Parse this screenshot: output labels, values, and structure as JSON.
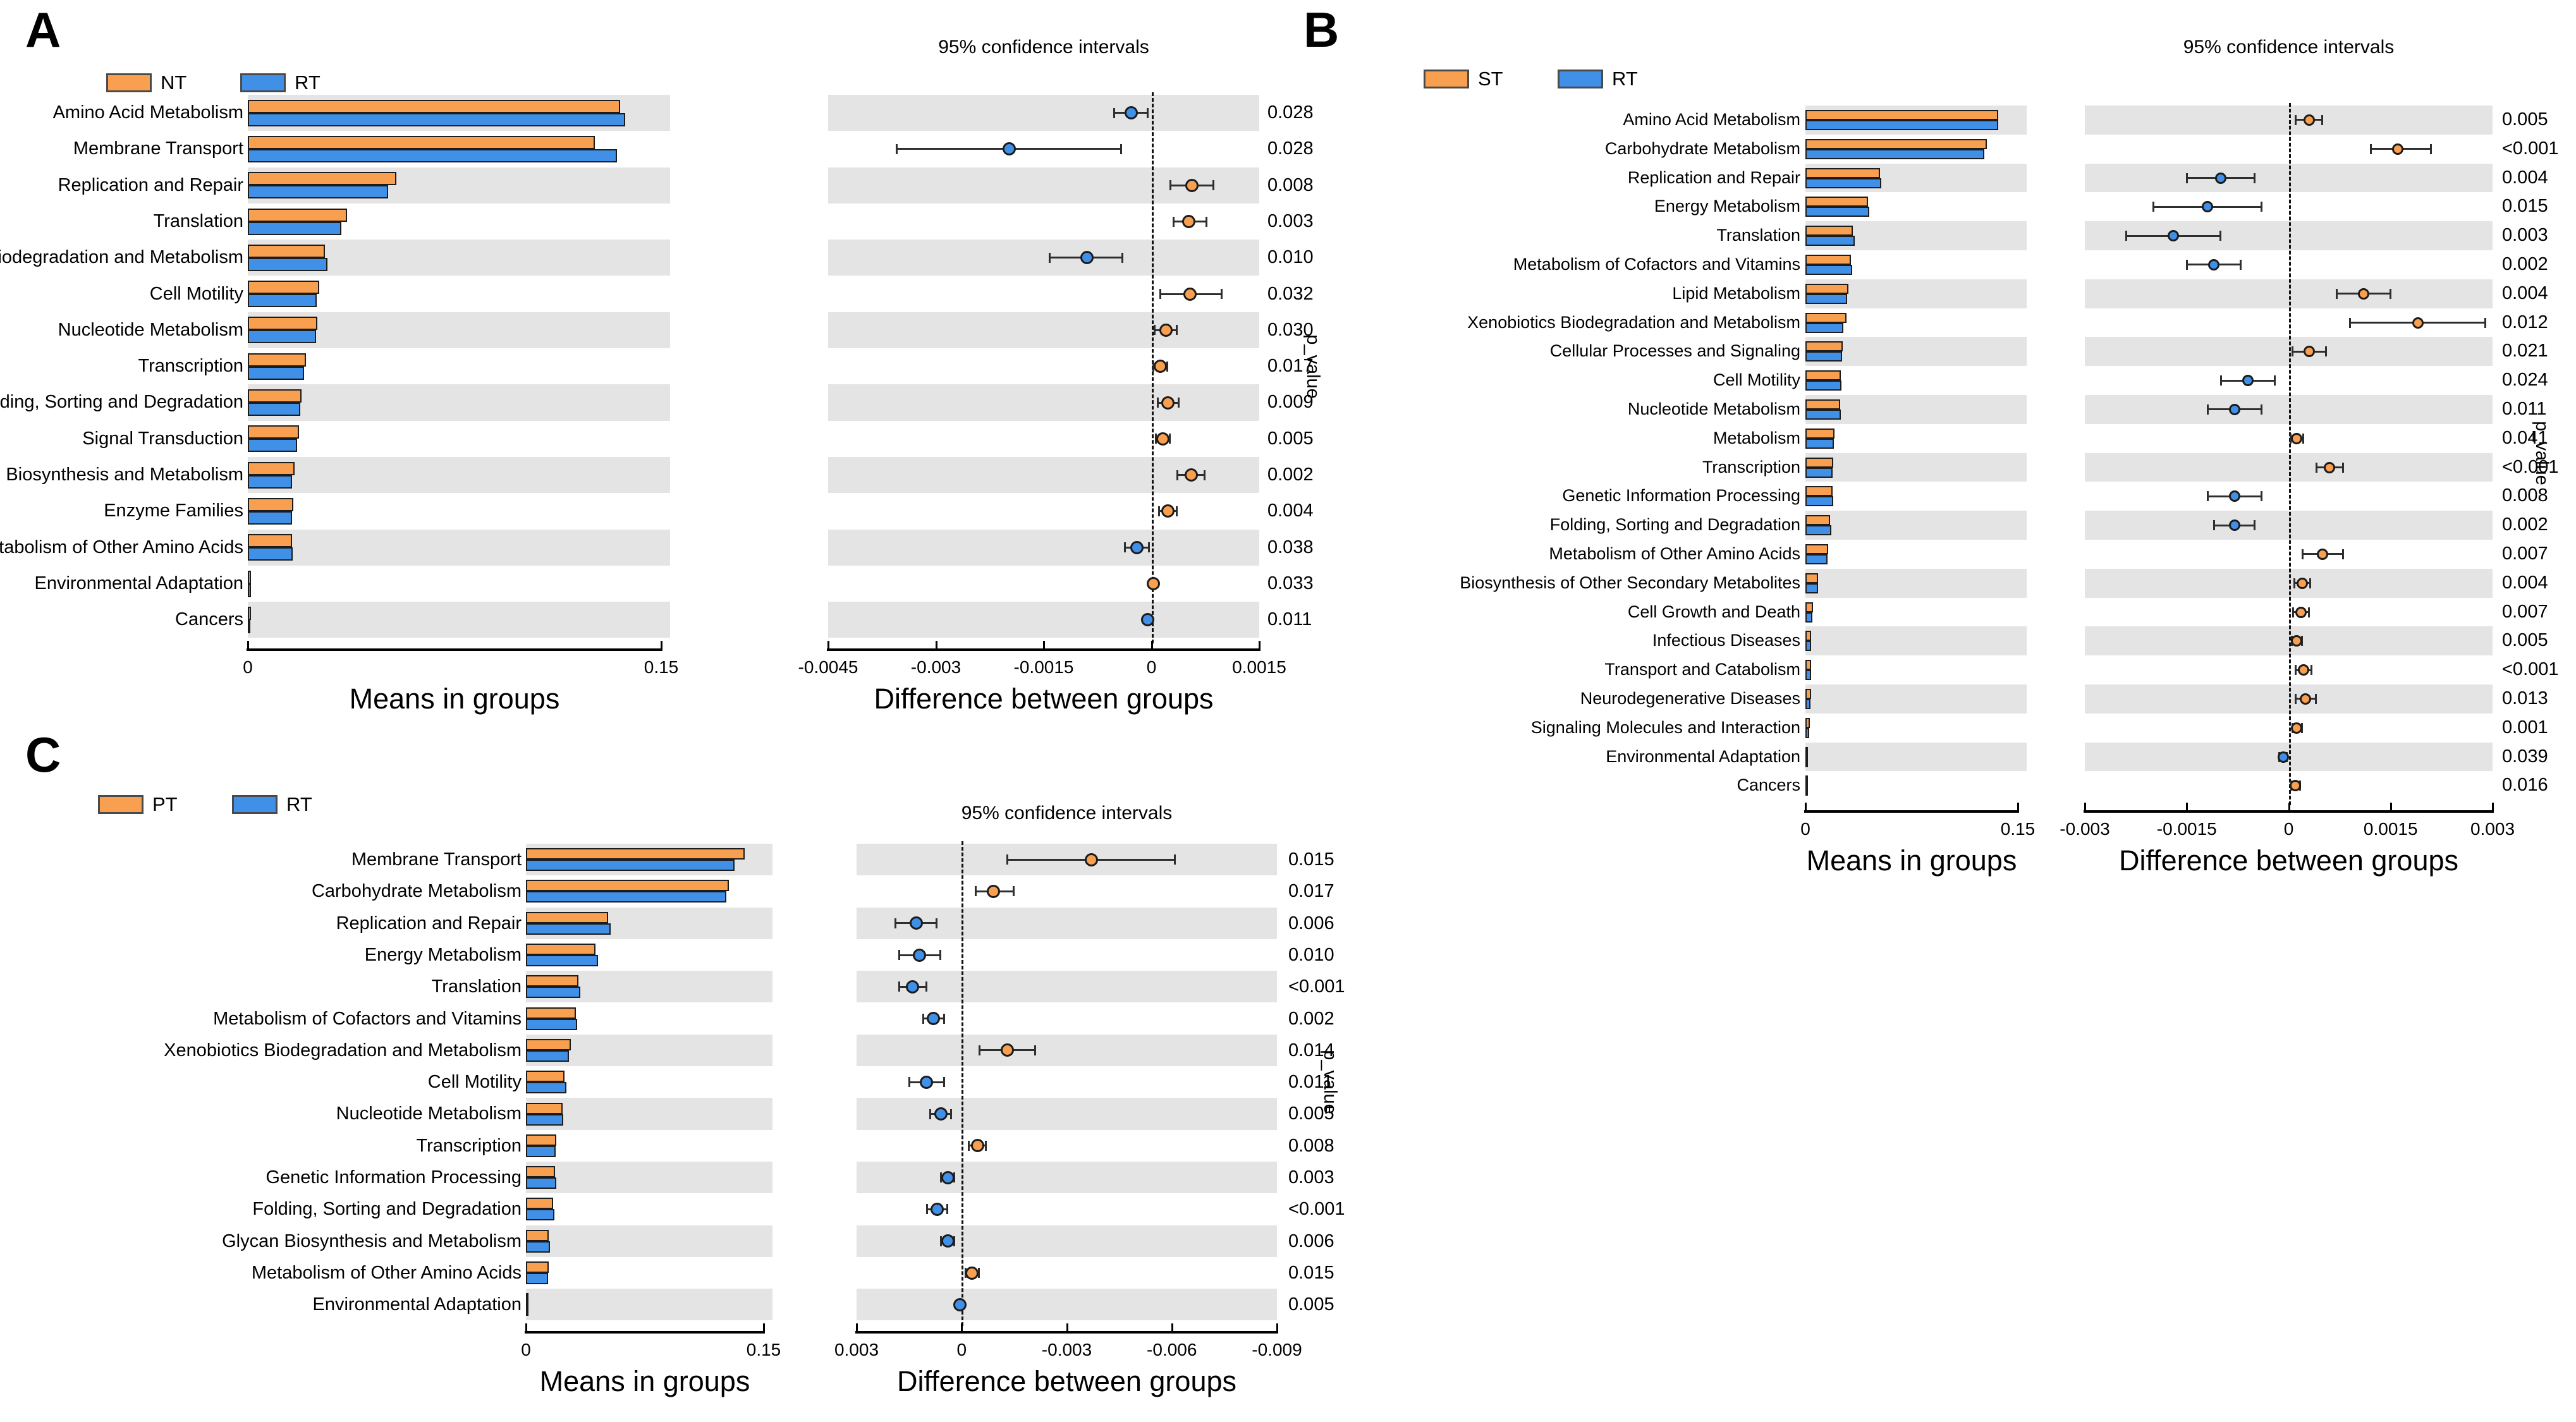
{
  "page": {
    "background": "#FFFFFF"
  },
  "styles": {
    "stripe_color": "#E4E4E4",
    "bar_border_color": "#1C1C1C",
    "axis_color": "#000000",
    "orange": "#F9A050",
    "blue": "#4190E8"
  },
  "chart_data": [
    {
      "type": "bar",
      "subtype": "extended-error-bar",
      "panel_label": "A",
      "groups": [
        "NT",
        "RT"
      ],
      "group_colors": {
        "NT": "#F9A050",
        "RT": "#4190E8"
      },
      "ci_title": "95% confidence intervals",
      "means_xlabel": "Means in groups",
      "diff_xlabel": "Difference between groups",
      "p_axis_label": "p_value",
      "means_xlim": [
        0,
        0.15
      ],
      "means_tick_labels": [
        "0",
        "0.15"
      ],
      "diff_axis_left_to_right": [
        -0.0045,
        0.0015
      ],
      "diff_ticks": [
        {
          "v": -0.0045,
          "label": "-0.0045"
        },
        {
          "v": -0.003,
          "label": "-0.003"
        },
        {
          "v": -0.0015,
          "label": "-0.0015"
        },
        {
          "v": 0,
          "label": "0"
        },
        {
          "v": 0.0015,
          "label": "0.0015"
        }
      ],
      "rows": [
        {
          "category": "Amino Acid Metabolism",
          "means": [
            0.135,
            0.137
          ],
          "diff": -0.00028,
          "ci": [
            -0.00052,
            -5e-05
          ],
          "dot": "RT",
          "p_value": "0.028"
        },
        {
          "category": "Membrane Transport",
          "means": [
            0.126,
            0.134
          ],
          "diff": -0.00198,
          "ci": [
            -0.00355,
            -0.00042
          ],
          "dot": "RT",
          "p_value": "0.028"
        },
        {
          "category": "Replication and Repair",
          "means": [
            0.054,
            0.051
          ],
          "diff": 0.00056,
          "ci": [
            0.00026,
            0.00087
          ],
          "dot": "NT",
          "p_value": "0.008"
        },
        {
          "category": "Translation",
          "means": [
            0.036,
            0.034
          ],
          "diff": 0.00052,
          "ci": [
            0.0003,
            0.00077
          ],
          "dot": "NT",
          "p_value": "0.003"
        },
        {
          "category": "Xenobiotics Biodegradation and Metabolism",
          "means": [
            0.028,
            0.029
          ],
          "diff": -0.0009,
          "ci": [
            -0.00142,
            -0.0004
          ],
          "dot": "RT",
          "p_value": "0.010"
        },
        {
          "category": "Cell Motility",
          "means": [
            0.026,
            0.025
          ],
          "diff": 0.00054,
          "ci": [
            0.00012,
            0.00098
          ],
          "dot": "NT",
          "p_value": "0.032"
        },
        {
          "category": "Nucleotide Metabolism",
          "means": [
            0.0252,
            0.0248
          ],
          "diff": 0.0002,
          "ci": [
            4e-05,
            0.00036
          ],
          "dot": "NT",
          "p_value": "0.030"
        },
        {
          "category": "Transcription",
          "means": [
            0.021,
            0.0205
          ],
          "diff": 0.00012,
          "ci": [
            2e-05,
            0.00022
          ],
          "dot": "NT",
          "p_value": "0.017"
        },
        {
          "category": "Folding, Sorting and Degradation",
          "means": [
            0.0195,
            0.019
          ],
          "diff": 0.00023,
          "ci": [
            8e-05,
            0.00038
          ],
          "dot": "NT",
          "p_value": "0.009"
        },
        {
          "category": "Signal Transduction",
          "means": [
            0.0185,
            0.018
          ],
          "diff": 0.00016,
          "ci": [
            6e-05,
            0.00026
          ],
          "dot": "NT",
          "p_value": "0.005"
        },
        {
          "category": "Glycan Biosynthesis and Metabolism",
          "means": [
            0.017,
            0.016
          ],
          "diff": 0.00055,
          "ci": [
            0.00036,
            0.00074
          ],
          "dot": "NT",
          "p_value": "0.002"
        },
        {
          "category": "Enzyme Families",
          "means": [
            0.0165,
            0.016
          ],
          "diff": 0.00023,
          "ci": [
            0.0001,
            0.00036
          ],
          "dot": "NT",
          "p_value": "0.004"
        },
        {
          "category": "Metabolism of Other Amino Acids",
          "means": [
            0.016,
            0.0163
          ],
          "diff": -0.0002,
          "ci": [
            -0.00037,
            -3e-05
          ],
          "dot": "RT",
          "p_value": "0.038"
        },
        {
          "category": "Environmental Adaptation",
          "means": [
            0.0012,
            0.0011
          ],
          "diff": 3e-05,
          "ci": [
            1e-05,
            6e-05
          ],
          "dot": "NT",
          "p_value": "0.033"
        },
        {
          "category": "Cancers",
          "means": [
            0.0011,
            0.001
          ],
          "diff": -5e-05,
          "ci": [
            -9e-05,
            -1e-05
          ],
          "dot": "RT",
          "p_value": "0.011"
        }
      ]
    },
    {
      "type": "bar",
      "subtype": "extended-error-bar",
      "panel_label": "B",
      "groups": [
        "ST",
        "RT"
      ],
      "group_colors": {
        "ST": "#F9A050",
        "RT": "#4190E8"
      },
      "ci_title": "95% confidence intervals",
      "means_xlabel": "Means in groups",
      "diff_xlabel": "Difference between groups",
      "p_axis_label": "p_value",
      "means_xlim": [
        0,
        0.15
      ],
      "means_tick_labels": [
        "0",
        "0.15"
      ],
      "diff_axis_left_to_right": [
        -0.003,
        0.003
      ],
      "diff_ticks": [
        {
          "v": -0.003,
          "label": "-0.003"
        },
        {
          "v": -0.0015,
          "label": "-0.0015"
        },
        {
          "v": 0,
          "label": "0"
        },
        {
          "v": 0.0015,
          "label": "0.0015"
        },
        {
          "v": 0.003,
          "label": "0.003"
        }
      ],
      "rows": [
        {
          "category": "Amino Acid Metabolism",
          "means": [
            0.136,
            0.136
          ],
          "diff": 0.0003,
          "ci": [
            0.0001,
            0.0005
          ],
          "dot": "ST",
          "p_value": "0.005"
        },
        {
          "category": "Carbohydrate Metabolism",
          "means": [
            0.128,
            0.1265
          ],
          "diff": 0.0016,
          "ci": [
            0.0012,
            0.0021
          ],
          "dot": "ST",
          "p_value": "<0.001"
        },
        {
          "category": "Replication and Repair",
          "means": [
            0.0525,
            0.0535
          ],
          "diff": -0.001,
          "ci": [
            -0.0015,
            -0.0005
          ],
          "dot": "RT",
          "p_value": "0.004"
        },
        {
          "category": "Energy Metabolism",
          "means": [
            0.044,
            0.045
          ],
          "diff": -0.0012,
          "ci": [
            -0.002,
            -0.0004
          ],
          "dot": "RT",
          "p_value": "0.015"
        },
        {
          "category": "Translation",
          "means": [
            0.0335,
            0.035
          ],
          "diff": -0.0017,
          "ci": [
            -0.0024,
            -0.001
          ],
          "dot": "RT",
          "p_value": "0.003"
        },
        {
          "category": "Metabolism of Cofactors and Vitamins",
          "means": [
            0.032,
            0.033
          ],
          "diff": -0.0011,
          "ci": [
            -0.0015,
            -0.0007
          ],
          "dot": "RT",
          "p_value": "0.002"
        },
        {
          "category": "Lipid Metabolism",
          "means": [
            0.0305,
            0.0295
          ],
          "diff": 0.0011,
          "ci": [
            0.0007,
            0.0015
          ],
          "dot": "ST",
          "p_value": "0.004"
        },
        {
          "category": "Xenobiotics Biodegradation and Metabolism",
          "means": [
            0.029,
            0.027
          ],
          "diff": 0.0019,
          "ci": [
            0.0009,
            0.0029
          ],
          "dot": "ST",
          "p_value": "0.012"
        },
        {
          "category": "Cellular Processes and Signaling",
          "means": [
            0.0265,
            0.026
          ],
          "diff": 0.0003,
          "ci": [
            5e-05,
            0.00055
          ],
          "dot": "ST",
          "p_value": "0.021"
        },
        {
          "category": "Cell Motility",
          "means": [
            0.025,
            0.0255
          ],
          "diff": -0.0006,
          "ci": [
            -0.001,
            -0.0002
          ],
          "dot": "RT",
          "p_value": "0.024"
        },
        {
          "category": "Nucleotide Metabolism",
          "means": [
            0.0245,
            0.025
          ],
          "diff": -0.0008,
          "ci": [
            -0.0012,
            -0.0004
          ],
          "dot": "RT",
          "p_value": "0.011"
        },
        {
          "category": "Metabolism",
          "means": [
            0.0205,
            0.0203
          ],
          "diff": 0.00012,
          "ci": [
            2e-05,
            0.00022
          ],
          "dot": "ST",
          "p_value": "0.041"
        },
        {
          "category": "Transcription",
          "means": [
            0.0195,
            0.019
          ],
          "diff": 0.0006,
          "ci": [
            0.0004,
            0.0008
          ],
          "dot": "ST",
          "p_value": "<0.001"
        },
        {
          "category": "Genetic Information Processing",
          "means": [
            0.019,
            0.0198
          ],
          "diff": -0.0008,
          "ci": [
            -0.0012,
            -0.0004
          ],
          "dot": "RT",
          "p_value": "0.008"
        },
        {
          "category": "Folding, Sorting and Degradation",
          "means": [
            0.0175,
            0.0182
          ],
          "diff": -0.0008,
          "ci": [
            -0.0011,
            -0.0005
          ],
          "dot": "RT",
          "p_value": "0.002"
        },
        {
          "category": "Metabolism of Other Amino Acids",
          "means": [
            0.016,
            0.0155
          ],
          "diff": 0.0005,
          "ci": [
            0.0002,
            0.0008
          ],
          "dot": "ST",
          "p_value": "0.007"
        },
        {
          "category": "Biosynthesis of Other Secondary Metabolites",
          "means": [
            0.009,
            0.0088
          ],
          "diff": 0.0002,
          "ci": [
            8e-05,
            0.00032
          ],
          "dot": "ST",
          "p_value": "0.004"
        },
        {
          "category": "Cell Growth and Death",
          "means": [
            0.0052,
            0.005
          ],
          "diff": 0.00018,
          "ci": [
            6e-05,
            0.0003
          ],
          "dot": "ST",
          "p_value": "0.007"
        },
        {
          "category": "Infectious Diseases",
          "means": [
            0.0042,
            0.004
          ],
          "diff": 0.00012,
          "ci": [
            4e-05,
            0.0002
          ],
          "dot": "ST",
          "p_value": "0.005"
        },
        {
          "category": "Transport and Catabolism",
          "means": [
            0.004,
            0.0038
          ],
          "diff": 0.00022,
          "ci": [
            0.0001,
            0.00034
          ],
          "dot": "ST",
          "p_value": "<0.001"
        },
        {
          "category": "Neurodegenerative Diseases",
          "means": [
            0.0038,
            0.0036
          ],
          "diff": 0.00025,
          "ci": [
            0.0001,
            0.0004
          ],
          "dot": "ST",
          "p_value": "0.013"
        },
        {
          "category": "Signaling Molecules and Interaction",
          "means": [
            0.003,
            0.0029
          ],
          "diff": 0.00012,
          "ci": [
            5e-05,
            0.0002
          ],
          "dot": "ST",
          "p_value": "0.001"
        },
        {
          "category": "Environmental Adaptation",
          "means": [
            0.0012,
            0.00125
          ],
          "diff": -8e-05,
          "ci": [
            -0.00014,
            -2e-05
          ],
          "dot": "RT",
          "p_value": "0.039"
        },
        {
          "category": "Cancers",
          "means": [
            0.0011,
            0.00105
          ],
          "diff": 0.0001,
          "ci": [
            3e-05,
            0.00017
          ],
          "dot": "ST",
          "p_value": "0.016"
        }
      ]
    },
    {
      "type": "bar",
      "subtype": "extended-error-bar",
      "panel_label": "C",
      "groups": [
        "PT",
        "RT"
      ],
      "group_colors": {
        "PT": "#F9A050",
        "RT": "#4190E8"
      },
      "ci_title": "95% confidence intervals",
      "means_xlabel": "Means in groups",
      "diff_xlabel": "Difference between groups",
      "p_axis_label": "p_value",
      "means_xlim": [
        0,
        0.15
      ],
      "means_tick_labels": [
        "0",
        "0.15"
      ],
      "diff_axis_left_to_right": [
        0.003,
        -0.009
      ],
      "diff_ticks": [
        {
          "v": 0.003,
          "label": "0.003"
        },
        {
          "v": 0,
          "label": "0"
        },
        {
          "v": -0.003,
          "label": "-0.003"
        },
        {
          "v": -0.006,
          "label": "-0.006"
        },
        {
          "v": -0.009,
          "label": "-0.009"
        }
      ],
      "rows": [
        {
          "category": "Membrane Transport",
          "means": [
            0.138,
            0.1315
          ],
          "diff": -0.0037,
          "ci": [
            -0.0061,
            -0.0013
          ],
          "dot": "PT",
          "p_value": "0.015"
        },
        {
          "category": "Carbohydrate Metabolism",
          "means": [
            0.128,
            0.1265
          ],
          "diff": -0.0009,
          "ci": [
            -0.0015,
            -0.0004
          ],
          "dot": "PT",
          "p_value": "0.017"
        },
        {
          "category": "Replication and Repair",
          "means": [
            0.052,
            0.0535
          ],
          "diff": 0.0013,
          "ci": [
            0.0007,
            0.0019
          ],
          "dot": "RT",
          "p_value": "0.006"
        },
        {
          "category": "Energy Metabolism",
          "means": [
            0.044,
            0.0455
          ],
          "diff": 0.0012,
          "ci": [
            0.0006,
            0.0018
          ],
          "dot": "RT",
          "p_value": "0.010"
        },
        {
          "category": "Translation",
          "means": [
            0.033,
            0.0345
          ],
          "diff": 0.0014,
          "ci": [
            0.001,
            0.0018
          ],
          "dot": "RT",
          "p_value": "<0.001"
        },
        {
          "category": "Metabolism of Cofactors and Vitamins",
          "means": [
            0.0315,
            0.0325
          ],
          "diff": 0.0008,
          "ci": [
            0.0005,
            0.0011
          ],
          "dot": "RT",
          "p_value": "0.002"
        },
        {
          "category": "Xenobiotics Biodegradation and Metabolism",
          "means": [
            0.0285,
            0.027
          ],
          "diff": -0.0013,
          "ci": [
            -0.0021,
            -0.0005
          ],
          "dot": "PT",
          "p_value": "0.014"
        },
        {
          "category": "Cell Motility",
          "means": [
            0.0245,
            0.0255
          ],
          "diff": 0.001,
          "ci": [
            0.0005,
            0.0015
          ],
          "dot": "RT",
          "p_value": "0.011"
        },
        {
          "category": "Nucleotide Metabolism",
          "means": [
            0.023,
            0.0237
          ],
          "diff": 0.0006,
          "ci": [
            0.0003,
            0.0009
          ],
          "dot": "RT",
          "p_value": "0.005"
        },
        {
          "category": "Transcription",
          "means": [
            0.0192,
            0.0188
          ],
          "diff": -0.00045,
          "ci": [
            -0.0007,
            -0.0002
          ],
          "dot": "PT",
          "p_value": "0.008"
        },
        {
          "category": "Genetic Information Processing",
          "means": [
            0.0185,
            0.019
          ],
          "diff": 0.0004,
          "ci": [
            0.0002,
            0.0006
          ],
          "dot": "RT",
          "p_value": "0.003"
        },
        {
          "category": "Folding, Sorting and Degradation",
          "means": [
            0.0172,
            0.0179
          ],
          "diff": 0.0007,
          "ci": [
            0.0004,
            0.001
          ],
          "dot": "RT",
          "p_value": "<0.001"
        },
        {
          "category": "Glycan Biosynthesis and Metabolism",
          "means": [
            0.0145,
            0.015
          ],
          "diff": 0.0004,
          "ci": [
            0.0002,
            0.0006
          ],
          "dot": "RT",
          "p_value": "0.006"
        },
        {
          "category": "Metabolism of Other Amino Acids",
          "means": [
            0.0142,
            0.0139
          ],
          "diff": -0.0003,
          "ci": [
            -0.0005,
            -0.0001
          ],
          "dot": "PT",
          "p_value": "0.015"
        },
        {
          "category": "Environmental Adaptation",
          "means": [
            0.0012,
            0.00125
          ],
          "diff": 5e-05,
          "ci": [
            1e-05,
            0.0001
          ],
          "dot": "RT",
          "p_value": "0.005"
        }
      ]
    }
  ]
}
